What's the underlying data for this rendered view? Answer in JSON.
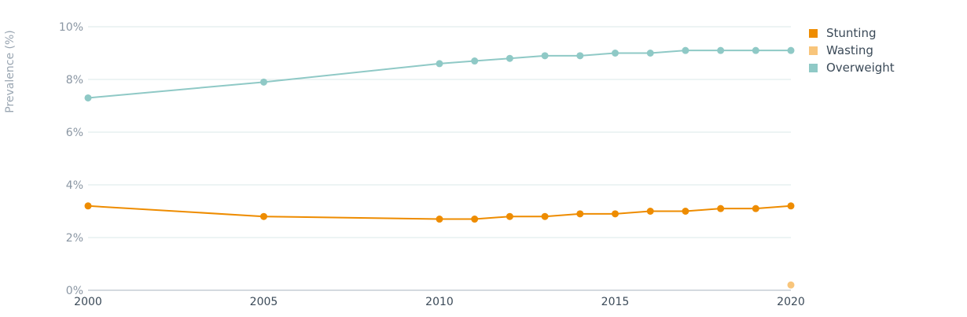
{
  "chart_data": {
    "type": "line",
    "title": "",
    "xlabel": "",
    "ylabel": "Prevalence (%)",
    "xlim": [
      2000,
      2020
    ],
    "ylim": [
      0,
      10
    ],
    "x_ticks": [
      2000,
      2005,
      2010,
      2015,
      2020
    ],
    "x_tick_labels": [
      "2000",
      "2005",
      "2010",
      "2015",
      "2020"
    ],
    "y_ticks": [
      0,
      2,
      4,
      6,
      8,
      10
    ],
    "y_tick_labels": [
      "0%",
      "2%",
      "4%",
      "6%",
      "8%",
      "10%"
    ],
    "grid": "horizontal",
    "legend_position": "top-right",
    "series": [
      {
        "name": "Stunting",
        "color": "#ee8c00",
        "x": [
          2000,
          2005,
          2010,
          2011,
          2012,
          2013,
          2014,
          2015,
          2016,
          2017,
          2018,
          2019,
          2020
        ],
        "values": [
          3.2,
          2.8,
          2.7,
          2.7,
          2.8,
          2.8,
          2.9,
          2.9,
          3.0,
          3.0,
          3.1,
          3.1,
          3.2
        ]
      },
      {
        "name": "Wasting",
        "color": "#f8c57b",
        "x": [
          2020
        ],
        "values": [
          0.2
        ]
      },
      {
        "name": "Overweight",
        "color": "#8fc9c6",
        "x": [
          2000,
          2005,
          2010,
          2011,
          2012,
          2013,
          2014,
          2015,
          2016,
          2017,
          2018,
          2019,
          2020
        ],
        "values": [
          7.3,
          7.9,
          8.6,
          8.7,
          8.8,
          8.9,
          8.9,
          9.0,
          9.0,
          9.1,
          9.1,
          9.1,
          9.1
        ]
      }
    ]
  }
}
